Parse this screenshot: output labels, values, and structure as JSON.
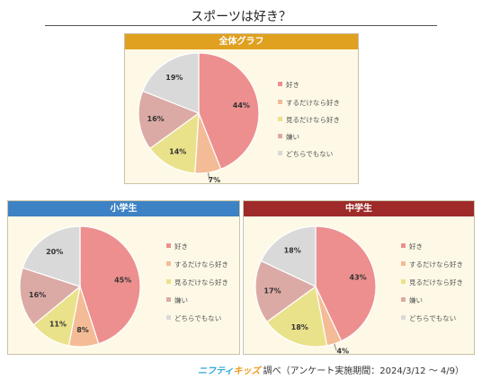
{
  "title": "スポーツは好き？",
  "footer": {
    "brand_part1": "ニフティ",
    "brand_part2": "キッズ",
    "text": "調べ（アンケート実施期間：2024/3/12 ～ 4/9）"
  },
  "colors": {
    "like": "#ed8f8f",
    "watch_only": "#f4bc96",
    "watch_only_like": "#eae28a",
    "dislike": "#dcaaa5",
    "neither": "#d9d9d9",
    "header_all": "#e0a020",
    "header_elementary": "#3d82c4",
    "header_junior": "#9e2a2a",
    "panel_bg": "#fdf9e6"
  },
  "chart_data": [
    {
      "type": "pie",
      "title": "全体グラフ",
      "categories": [
        "好き",
        "するだけなら好き",
        "見るだけなら好き",
        "嫌い",
        "どちらでもない"
      ],
      "values": [
        44,
        7,
        14,
        16,
        19
      ],
      "labels": [
        "44%",
        "7%",
        "14%",
        "16%",
        "19%"
      ]
    },
    {
      "type": "pie",
      "title": "小学生",
      "categories": [
        "好き",
        "するだけなら好き",
        "見るだけなら好き",
        "嫌い",
        "どちらでもない"
      ],
      "values": [
        45,
        8,
        11,
        16,
        20
      ],
      "labels": [
        "45%",
        "8%",
        "11%",
        "16%",
        "20%"
      ]
    },
    {
      "type": "pie",
      "title": "中学生",
      "categories": [
        "好き",
        "するだけなら好き",
        "見るだけなら好き",
        "嫌い",
        "どちらでもない"
      ],
      "values": [
        43,
        4,
        18,
        17,
        18
      ],
      "labels": [
        "43%",
        "4%",
        "18%",
        "17%",
        "18%"
      ]
    }
  ]
}
